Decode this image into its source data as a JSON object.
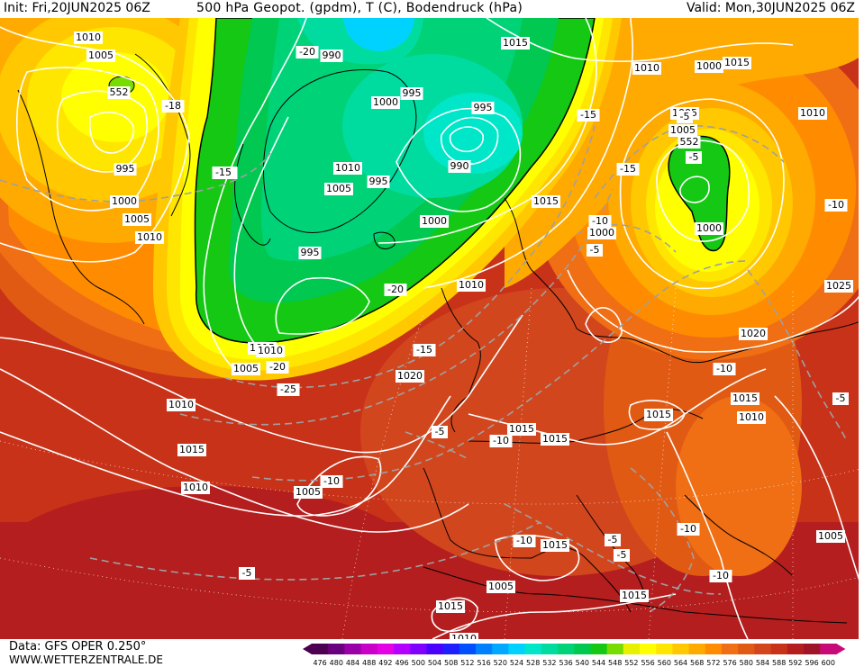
{
  "header": {
    "init": "Init: Fri,20JUN2025 06Z",
    "title": "500 hPa Geopot. (gpdm), T (C), Bodendruck (hPa)",
    "valid": "Valid: Mon,30JUN2025 06Z"
  },
  "footer": {
    "data_source": "Data: GFS OPER 0.250°",
    "website": "WWW.WETTERZENTRALE.DE"
  },
  "legend": {
    "ticks": [
      "476",
      "480",
      "484",
      "488",
      "492",
      "496",
      "500",
      "504",
      "508",
      "512",
      "516",
      "520",
      "524",
      "528",
      "532",
      "536",
      "540",
      "544",
      "548",
      "552",
      "556",
      "560",
      "564",
      "568",
      "572",
      "576",
      "580",
      "584",
      "588",
      "592",
      "596",
      "600"
    ],
    "colors": [
      "#4b0050",
      "#6a0080",
      "#9a00a8",
      "#c800c8",
      "#e600e6",
      "#b300ff",
      "#8000ff",
      "#4b00ff",
      "#1e1eff",
      "#0050ff",
      "#0080ff",
      "#00a8ff",
      "#00d2ff",
      "#00e6c8",
      "#00dca0",
      "#00d278",
      "#00c850",
      "#14c814",
      "#78dc00",
      "#e6f000",
      "#ffff00",
      "#ffe600",
      "#ffc800",
      "#ffaa00",
      "#ff8c00",
      "#f06e14",
      "#e05a14",
      "#d2461e",
      "#c83219",
      "#b41e1e",
      "#a01428",
      "#c80a78"
    ]
  },
  "pressure_labels": [
    "1010",
    "1005",
    "552",
    "995",
    "1000",
    "1005",
    "1010",
    "990",
    "1015",
    "995",
    "1000",
    "1010",
    "1005",
    "995",
    "990",
    "995",
    "1000",
    "995",
    "1000",
    "1005",
    "1000",
    "1010",
    "1015",
    "1010",
    "1015",
    "1005",
    "552",
    "1000",
    "1010",
    "1015",
    "1005",
    "1010",
    "1015",
    "1020",
    "1010",
    "1005",
    "1015",
    "1015",
    "1020",
    "1025",
    "1015",
    "1015",
    "1010",
    "1005",
    "1015",
    "1005",
    "1015",
    "1010",
    "1015",
    "1010"
  ],
  "temperature_labels": [
    "-18",
    "-20",
    "-20",
    "-20",
    "-20",
    "-25",
    "-15",
    "-15",
    "-10",
    "-10",
    "-10",
    "-10",
    "-10",
    "-10",
    "-15",
    "-5",
    "-5",
    "-5",
    "-10",
    "-10",
    "-5",
    "-5",
    "-5",
    "-5",
    "-5",
    "-15"
  ],
  "colors": {
    "low_core": "#00d278",
    "trough_edge": "#14c814",
    "ridge": "#ffff00",
    "warm": "#d2461e",
    "hot": "#b41e1e"
  }
}
